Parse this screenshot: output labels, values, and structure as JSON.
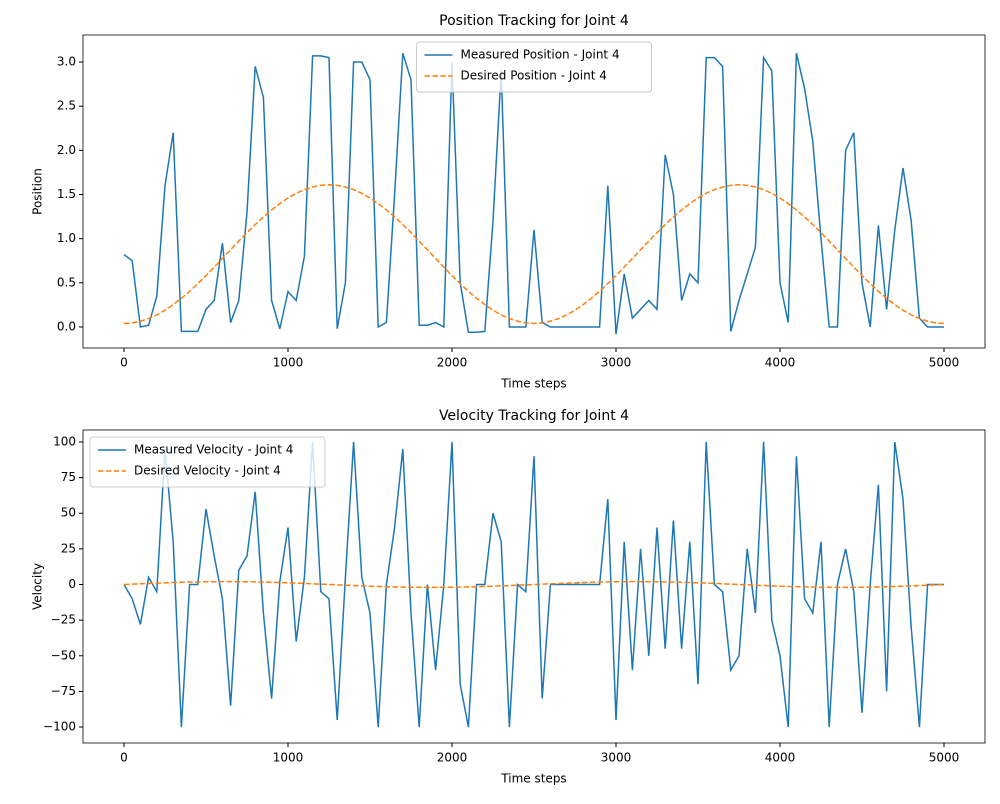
{
  "chart_data": [
    {
      "type": "line",
      "title": "Position Tracking for Joint 4",
      "xlabel": "Time steps",
      "ylabel": "Position",
      "x": [
        0,
        50,
        100,
        150,
        200,
        250,
        300,
        350,
        400,
        450,
        500,
        550,
        600,
        650,
        700,
        750,
        800,
        850,
        900,
        950,
        1000,
        1050,
        1100,
        1150,
        1200,
        1250,
        1300,
        1350,
        1400,
        1450,
        1500,
        1550,
        1600,
        1650,
        1700,
        1750,
        1800,
        1850,
        1900,
        1950,
        2000,
        2050,
        2100,
        2150,
        2200,
        2250,
        2300,
        2350,
        2400,
        2450,
        2500,
        2550,
        2600,
        2650,
        2700,
        2750,
        2800,
        2850,
        2900,
        2950,
        3000,
        3050,
        3100,
        3150,
        3200,
        3250,
        3300,
        3350,
        3400,
        3450,
        3500,
        3550,
        3600,
        3650,
        3700,
        3750,
        3800,
        3850,
        3900,
        3950,
        4000,
        4050,
        4100,
        4150,
        4200,
        4250,
        4300,
        4350,
        4400,
        4450,
        4500,
        4550,
        4600,
        4650,
        4700,
        4750,
        4800,
        4850,
        4900,
        4950,
        5000
      ],
      "series": [
        {
          "name": "Measured Position - Joint 4",
          "color": "#1f77b4",
          "dash": false,
          "values": [
            0.82,
            0.75,
            0.0,
            0.02,
            0.35,
            1.6,
            2.2,
            -0.05,
            -0.05,
            -0.05,
            0.2,
            0.3,
            0.95,
            0.05,
            0.3,
            1.3,
            2.95,
            2.6,
            0.3,
            -0.02,
            0.4,
            0.3,
            0.8,
            3.07,
            3.07,
            3.05,
            -0.02,
            0.5,
            3.0,
            3.0,
            2.8,
            0.0,
            0.05,
            1.5,
            3.1,
            2.8,
            0.02,
            0.02,
            0.05,
            0.0,
            3.0,
            0.5,
            -0.06,
            -0.06,
            -0.05,
            1.2,
            2.9,
            0.0,
            0.0,
            0.0,
            1.1,
            0.05,
            0.0,
            0.0,
            0.0,
            0.0,
            0.0,
            0.0,
            0.0,
            1.6,
            -0.08,
            0.6,
            0.1,
            0.2,
            0.3,
            0.2,
            1.95,
            1.5,
            0.3,
            0.6,
            0.5,
            3.05,
            3.05,
            2.95,
            -0.05,
            0.3,
            0.6,
            0.9,
            3.05,
            2.9,
            0.5,
            0.05,
            3.1,
            2.7,
            2.1,
            1.0,
            0.0,
            0.0,
            2.0,
            2.2,
            0.5,
            0.0,
            1.15,
            0.2,
            1.1,
            1.8,
            1.2,
            0.1,
            0.0,
            0.0,
            0.0
          ]
        },
        {
          "name": "Desired Position - Joint 4",
          "color": "#ff7f0e",
          "dash": true,
          "values": [
            0.04,
            0.046,
            0.065,
            0.095,
            0.137,
            0.19,
            0.253,
            0.325,
            0.404,
            0.491,
            0.582,
            0.678,
            0.776,
            0.874,
            0.972,
            1.068,
            1.159,
            1.246,
            1.325,
            1.397,
            1.46,
            1.513,
            1.555,
            1.585,
            1.604,
            1.61,
            1.604,
            1.585,
            1.555,
            1.513,
            1.46,
            1.397,
            1.325,
            1.246,
            1.159,
            1.068,
            0.972,
            0.874,
            0.776,
            0.678,
            0.582,
            0.491,
            0.404,
            0.325,
            0.253,
            0.19,
            0.137,
            0.095,
            0.065,
            0.046,
            0.04,
            0.046,
            0.065,
            0.095,
            0.137,
            0.19,
            0.253,
            0.325,
            0.404,
            0.491,
            0.582,
            0.678,
            0.776,
            0.874,
            0.972,
            1.068,
            1.159,
            1.246,
            1.325,
            1.397,
            1.46,
            1.513,
            1.555,
            1.585,
            1.604,
            1.61,
            1.604,
            1.585,
            1.555,
            1.513,
            1.46,
            1.397,
            1.325,
            1.246,
            1.159,
            1.068,
            0.972,
            0.874,
            0.776,
            0.678,
            0.582,
            0.491,
            0.404,
            0.325,
            0.253,
            0.19,
            0.137,
            0.095,
            0.065,
            0.046,
            0.04
          ]
        }
      ],
      "xlim": [
        -250,
        5250
      ],
      "xticks": [
        0,
        1000,
        2000,
        3000,
        4000,
        5000
      ],
      "ylim": [
        -0.238,
        3.306
      ],
      "yticks": [
        {
          "value": 0,
          "label": "0.0"
        },
        0.5,
        {
          "value": 1,
          "label": "1.0"
        },
        1.5,
        {
          "value": 2,
          "label": "2.0"
        },
        2.5,
        {
          "value": 3,
          "label": "3.0"
        }
      ],
      "legend": "upper center"
    },
    {
      "type": "line",
      "title": "Velocity Tracking for Joint 4",
      "xlabel": "Time steps",
      "ylabel": "Velocity",
      "x": [
        0,
        50,
        100,
        150,
        200,
        250,
        300,
        350,
        400,
        450,
        500,
        550,
        600,
        650,
        700,
        750,
        800,
        850,
        900,
        950,
        1000,
        1050,
        1100,
        1150,
        1200,
        1250,
        1300,
        1350,
        1400,
        1450,
        1500,
        1550,
        1600,
        1650,
        1700,
        1750,
        1800,
        1850,
        1900,
        1950,
        2000,
        2050,
        2100,
        2150,
        2200,
        2250,
        2300,
        2350,
        2400,
        2450,
        2500,
        2550,
        2600,
        2650,
        2700,
        2750,
        2800,
        2850,
        2900,
        2950,
        3000,
        3050,
        3100,
        3150,
        3200,
        3250,
        3300,
        3350,
        3400,
        3450,
        3500,
        3550,
        3600,
        3650,
        3700,
        3750,
        3800,
        3850,
        3900,
        3950,
        4000,
        4050,
        4100,
        4150,
        4200,
        4250,
        4300,
        4350,
        4400,
        4450,
        4500,
        4550,
        4600,
        4650,
        4700,
        4750,
        4800,
        4850,
        4900,
        4950,
        5000
      ],
      "series": [
        {
          "name": "Measured Velocity - Joint 4",
          "color": "#1f77b4",
          "dash": false,
          "values": [
            0,
            -10,
            -28,
            5,
            -5,
            95,
            30,
            -100,
            0,
            0,
            53,
            20,
            -10,
            -85,
            10,
            20,
            65,
            -20,
            -80,
            2,
            40,
            -40,
            5,
            100,
            -5,
            -10,
            -95,
            5,
            100,
            5,
            -20,
            -100,
            0,
            40,
            95,
            -20,
            -100,
            0,
            -60,
            0,
            100,
            -70,
            -100,
            0,
            0,
            50,
            30,
            -100,
            0,
            -5,
            90,
            -80,
            0,
            0,
            0,
            0,
            0,
            0,
            0,
            60,
            -95,
            30,
            -60,
            25,
            -50,
            40,
            -45,
            45,
            -45,
            30,
            -70,
            100,
            0,
            -5,
            -60,
            -50,
            25,
            -20,
            100,
            -25,
            -50,
            -100,
            90,
            -10,
            -20,
            30,
            -100,
            0,
            25,
            -5,
            -90,
            0,
            70,
            -75,
            100,
            60,
            -30,
            -100,
            0,
            0,
            0
          ]
        },
        {
          "name": "Desired Velocity - Joint 4",
          "color": "#ff7f0e",
          "dash": true,
          "values": [
            0,
            0.25,
            0.5,
            0.74,
            0.96,
            1.18,
            1.37,
            1.54,
            1.69,
            1.81,
            1.9,
            1.96,
            2.0,
            2.0,
            1.96,
            1.9,
            1.81,
            1.69,
            1.54,
            1.37,
            1.18,
            0.96,
            0.74,
            0.5,
            0.25,
            0,
            -0.25,
            -0.5,
            -0.74,
            -0.96,
            -1.18,
            -1.37,
            -1.54,
            -1.69,
            -1.81,
            -1.9,
            -1.96,
            -2.0,
            -2.0,
            -1.96,
            -1.9,
            -1.81,
            -1.69,
            -1.54,
            -1.37,
            -1.18,
            -0.96,
            -0.74,
            -0.5,
            -0.25,
            0,
            0.25,
            0.5,
            0.74,
            0.96,
            1.18,
            1.37,
            1.54,
            1.69,
            1.81,
            1.9,
            1.96,
            2.0,
            2.0,
            1.96,
            1.9,
            1.81,
            1.69,
            1.54,
            1.37,
            1.18,
            0.96,
            0.74,
            0.5,
            0.25,
            0,
            -0.25,
            -0.5,
            -0.74,
            -0.96,
            -1.18,
            -1.37,
            -1.54,
            -1.69,
            -1.81,
            -1.9,
            -1.96,
            -2.0,
            -2.0,
            -1.96,
            -1.9,
            -1.81,
            -1.69,
            -1.54,
            -1.37,
            -1.18,
            -0.96,
            -0.74,
            -0.5,
            -0.25,
            0
          ]
        }
      ],
      "xlim": [
        -250,
        5250
      ],
      "xticks": [
        0,
        1000,
        2000,
        3000,
        4000,
        5000
      ],
      "ylim": [
        -111.2,
        108.4
      ],
      "yticks": [
        {
          "value": -100,
          "label": "−100"
        },
        {
          "value": -75,
          "label": "−75"
        },
        {
          "value": -50,
          "label": "−50"
        },
        {
          "value": -25,
          "label": "−25"
        },
        0,
        25,
        50,
        75,
        100
      ],
      "legend": "upper left"
    }
  ]
}
